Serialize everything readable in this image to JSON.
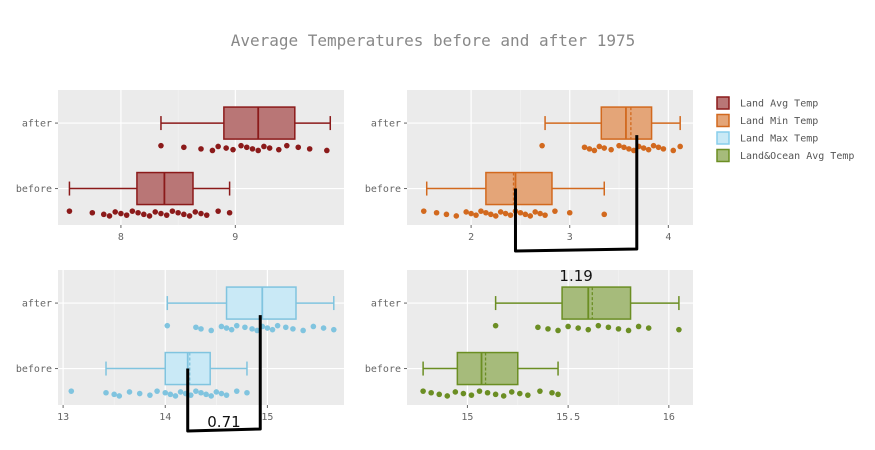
{
  "title": "Average Temperatures before and after 1975",
  "chart_data": [
    {
      "type": "box",
      "name": "Land Avg Temp",
      "color": "#8b1a1a",
      "categories": [
        "after",
        "before"
      ],
      "xticks": [
        8,
        9
      ],
      "xlim": [
        7.45,
        9.95
      ],
      "boxes": {
        "after": {
          "min": 8.35,
          "q1": 8.9,
          "median": 9.2,
          "mean": 9.2,
          "q3": 9.52,
          "max": 9.83,
          "points": [
            8.35,
            8.55,
            8.7,
            8.8,
            8.85,
            8.92,
            8.98,
            9.05,
            9.1,
            9.15,
            9.2,
            9.25,
            9.3,
            9.38,
            9.45,
            9.55,
            9.65,
            9.8
          ]
        },
        "before": {
          "min": 7.55,
          "q1": 8.14,
          "median": 8.38,
          "mean": 8.38,
          "q3": 8.63,
          "max": 8.95,
          "points": [
            7.55,
            7.75,
            7.85,
            7.9,
            7.95,
            8.0,
            8.05,
            8.1,
            8.15,
            8.2,
            8.25,
            8.3,
            8.35,
            8.4,
            8.45,
            8.5,
            8.55,
            8.6,
            8.65,
            8.7,
            8.75,
            8.85,
            8.95
          ]
        }
      }
    },
    {
      "type": "box",
      "name": "Land Min Temp",
      "color": "#d2691e",
      "categories": [
        "after",
        "before"
      ],
      "xticks": [
        2,
        3,
        4
      ],
      "xlim": [
        1.35,
        4.25
      ],
      "boxes": {
        "after": {
          "min": 2.75,
          "q1": 3.32,
          "median": 3.57,
          "mean": 3.62,
          "q3": 3.83,
          "max": 4.12,
          "points": [
            2.72,
            3.15,
            3.2,
            3.25,
            3.3,
            3.35,
            3.42,
            3.5,
            3.55,
            3.6,
            3.65,
            3.7,
            3.75,
            3.8,
            3.85,
            3.9,
            3.95,
            4.05,
            4.12
          ]
        },
        "before": {
          "min": 1.55,
          "q1": 2.15,
          "median": 2.45,
          "mean": 2.43,
          "q3": 2.82,
          "max": 3.35,
          "points": [
            1.52,
            1.65,
            1.75,
            1.85,
            1.95,
            2.0,
            2.05,
            2.1,
            2.15,
            2.2,
            2.25,
            2.3,
            2.35,
            2.4,
            2.45,
            2.5,
            2.55,
            2.6,
            2.65,
            2.7,
            2.75,
            2.85,
            3.0,
            3.35
          ]
        }
      }
    },
    {
      "type": "box",
      "name": "Land Max Temp",
      "color": "#87ceeb",
      "categories": [
        "after",
        "before"
      ],
      "xticks": [
        13,
        14,
        15
      ],
      "xlim": [
        12.95,
        15.75
      ],
      "boxes": {
        "after": {
          "min": 14.02,
          "q1": 14.6,
          "median": 14.95,
          "mean": 14.95,
          "q3": 15.28,
          "max": 15.65,
          "points": [
            14.02,
            14.3,
            14.35,
            14.45,
            14.55,
            14.6,
            14.65,
            14.7,
            14.78,
            14.85,
            14.9,
            14.95,
            15.0,
            15.05,
            15.1,
            15.18,
            15.25,
            15.35,
            15.45,
            15.55,
            15.65
          ]
        },
        "before": {
          "min": 13.42,
          "q1": 14.0,
          "median": 14.22,
          "mean": 14.24,
          "q3": 14.44,
          "max": 14.8,
          "points": [
            13.08,
            13.42,
            13.5,
            13.55,
            13.65,
            13.75,
            13.85,
            13.92,
            14.0,
            14.05,
            14.1,
            14.15,
            14.2,
            14.25,
            14.3,
            14.35,
            14.4,
            14.45,
            14.5,
            14.55,
            14.6,
            14.7,
            14.8
          ]
        }
      }
    },
    {
      "type": "box",
      "name": "Land&Ocean Avg Temp",
      "color": "#6b8e23",
      "categories": [
        "after",
        "before"
      ],
      "xticks": [
        15,
        15.5,
        16
      ],
      "xlim": [
        14.7,
        16.12
      ],
      "boxes": {
        "after": {
          "min": 15.14,
          "q1": 15.47,
          "median": 15.6,
          "mean": 15.62,
          "q3": 15.81,
          "max": 16.05,
          "points": [
            15.14,
            15.35,
            15.4,
            15.45,
            15.5,
            15.55,
            15.6,
            15.65,
            15.7,
            15.75,
            15.8,
            15.85,
            15.9,
            16.05
          ]
        },
        "before": {
          "min": 14.78,
          "q1": 14.95,
          "median": 15.07,
          "mean": 15.09,
          "q3": 15.25,
          "max": 15.45,
          "points": [
            14.78,
            14.82,
            14.86,
            14.9,
            14.94,
            14.98,
            15.02,
            15.06,
            15.1,
            15.14,
            15.18,
            15.22,
            15.26,
            15.3,
            15.36,
            15.42,
            15.45
          ]
        }
      }
    }
  ],
  "annotations": [
    {
      "panel": 1,
      "text": "1.19",
      "from": 2.45,
      "to": 3.68
    },
    {
      "panel": 2,
      "text": "0.71",
      "from": 14.22,
      "to": 14.93
    }
  ],
  "legend": {
    "position": "right",
    "items": [
      {
        "label": "Land Avg Temp",
        "color": "#8b1a1a"
      },
      {
        "label": "Land Min Temp",
        "color": "#d2691e"
      },
      {
        "label": "Land Max Temp",
        "color": "#87ceeb"
      },
      {
        "label": "Land&Ocean Avg Temp",
        "color": "#6b8e23"
      }
    ]
  }
}
